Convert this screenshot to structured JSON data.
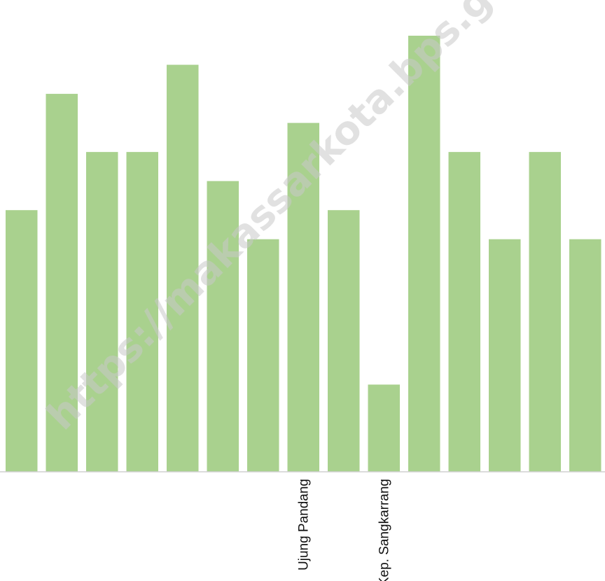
{
  "watermark": "https://makassarkota.bps.go.id",
  "chart_data": {
    "type": "bar",
    "categories": [
      "",
      "",
      "",
      "",
      "",
      "",
      "",
      "Ujung Pandang",
      "",
      "Kep. Sangkarrang",
      "",
      "",
      "",
      "",
      ""
    ],
    "values": [
      9,
      13,
      11,
      11,
      14,
      10,
      8,
      12,
      9,
      3,
      15,
      11,
      8,
      11,
      8
    ],
    "title": "",
    "xlabel": "",
    "ylabel": "",
    "ylim": [
      0,
      15
    ],
    "grid": false,
    "legend": "none",
    "bar_color": "#a9d18e"
  }
}
